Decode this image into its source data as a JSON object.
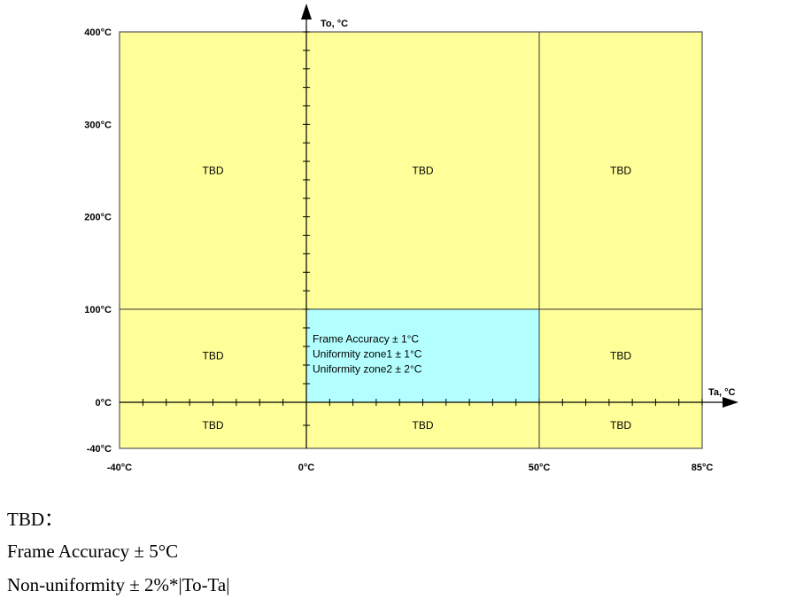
{
  "chart_data": {
    "type": "heatmap",
    "title": "",
    "xlabel": "Ta, °C",
    "ylabel": "To, °C",
    "x_breaks": [
      -40,
      0,
      50,
      85
    ],
    "y_breaks": [
      -40,
      0,
      100,
      400
    ],
    "x_tick_labels": [
      "-40°C",
      "0°C",
      "50°C",
      "85°C"
    ],
    "y_tick_labels": [
      "400°C",
      "300°C",
      "200°C",
      "100°C",
      "0°C",
      "-40°C"
    ],
    "y_tick_values": [
      400,
      300,
      200,
      100,
      0,
      -40
    ],
    "zones": [
      {
        "x": [
          -40,
          0
        ],
        "y": [
          100,
          400
        ],
        "label": "TBD",
        "color": "#ffff99"
      },
      {
        "x": [
          0,
          50
        ],
        "y": [
          100,
          400
        ],
        "label": "TBD",
        "color": "#ffff99"
      },
      {
        "x": [
          50,
          85
        ],
        "y": [
          100,
          400
        ],
        "label": "TBD",
        "color": "#ffff99"
      },
      {
        "x": [
          -40,
          0
        ],
        "y": [
          0,
          100
        ],
        "label": "TBD",
        "color": "#ffff99"
      },
      {
        "x": [
          50,
          85
        ],
        "y": [
          0,
          100
        ],
        "label": "TBD",
        "color": "#ffff99"
      },
      {
        "x": [
          -40,
          0
        ],
        "y": [
          -40,
          0
        ],
        "label": "TBD",
        "color": "#ffff99"
      },
      {
        "x": [
          0,
          50
        ],
        "y": [
          -40,
          0
        ],
        "label": "TBD",
        "color": "#ffff99"
      },
      {
        "x": [
          50,
          85
        ],
        "y": [
          -40,
          0
        ],
        "label": "TBD",
        "color": "#ffff99"
      },
      {
        "x": [
          0,
          50
        ],
        "y": [
          0,
          100
        ],
        "color": "#b3ffff",
        "lines": [
          "Frame Accuracy ± 1°C",
          "Uniformity zone1  ± 1°C",
          "Uniformity zone2  ± 2°C"
        ]
      }
    ]
  },
  "footnotes": {
    "heading": "TBD：",
    "line1": "Frame Accuracy ± 5°C",
    "line2": "Non-uniformity ± 2%*|To-Ta|"
  }
}
